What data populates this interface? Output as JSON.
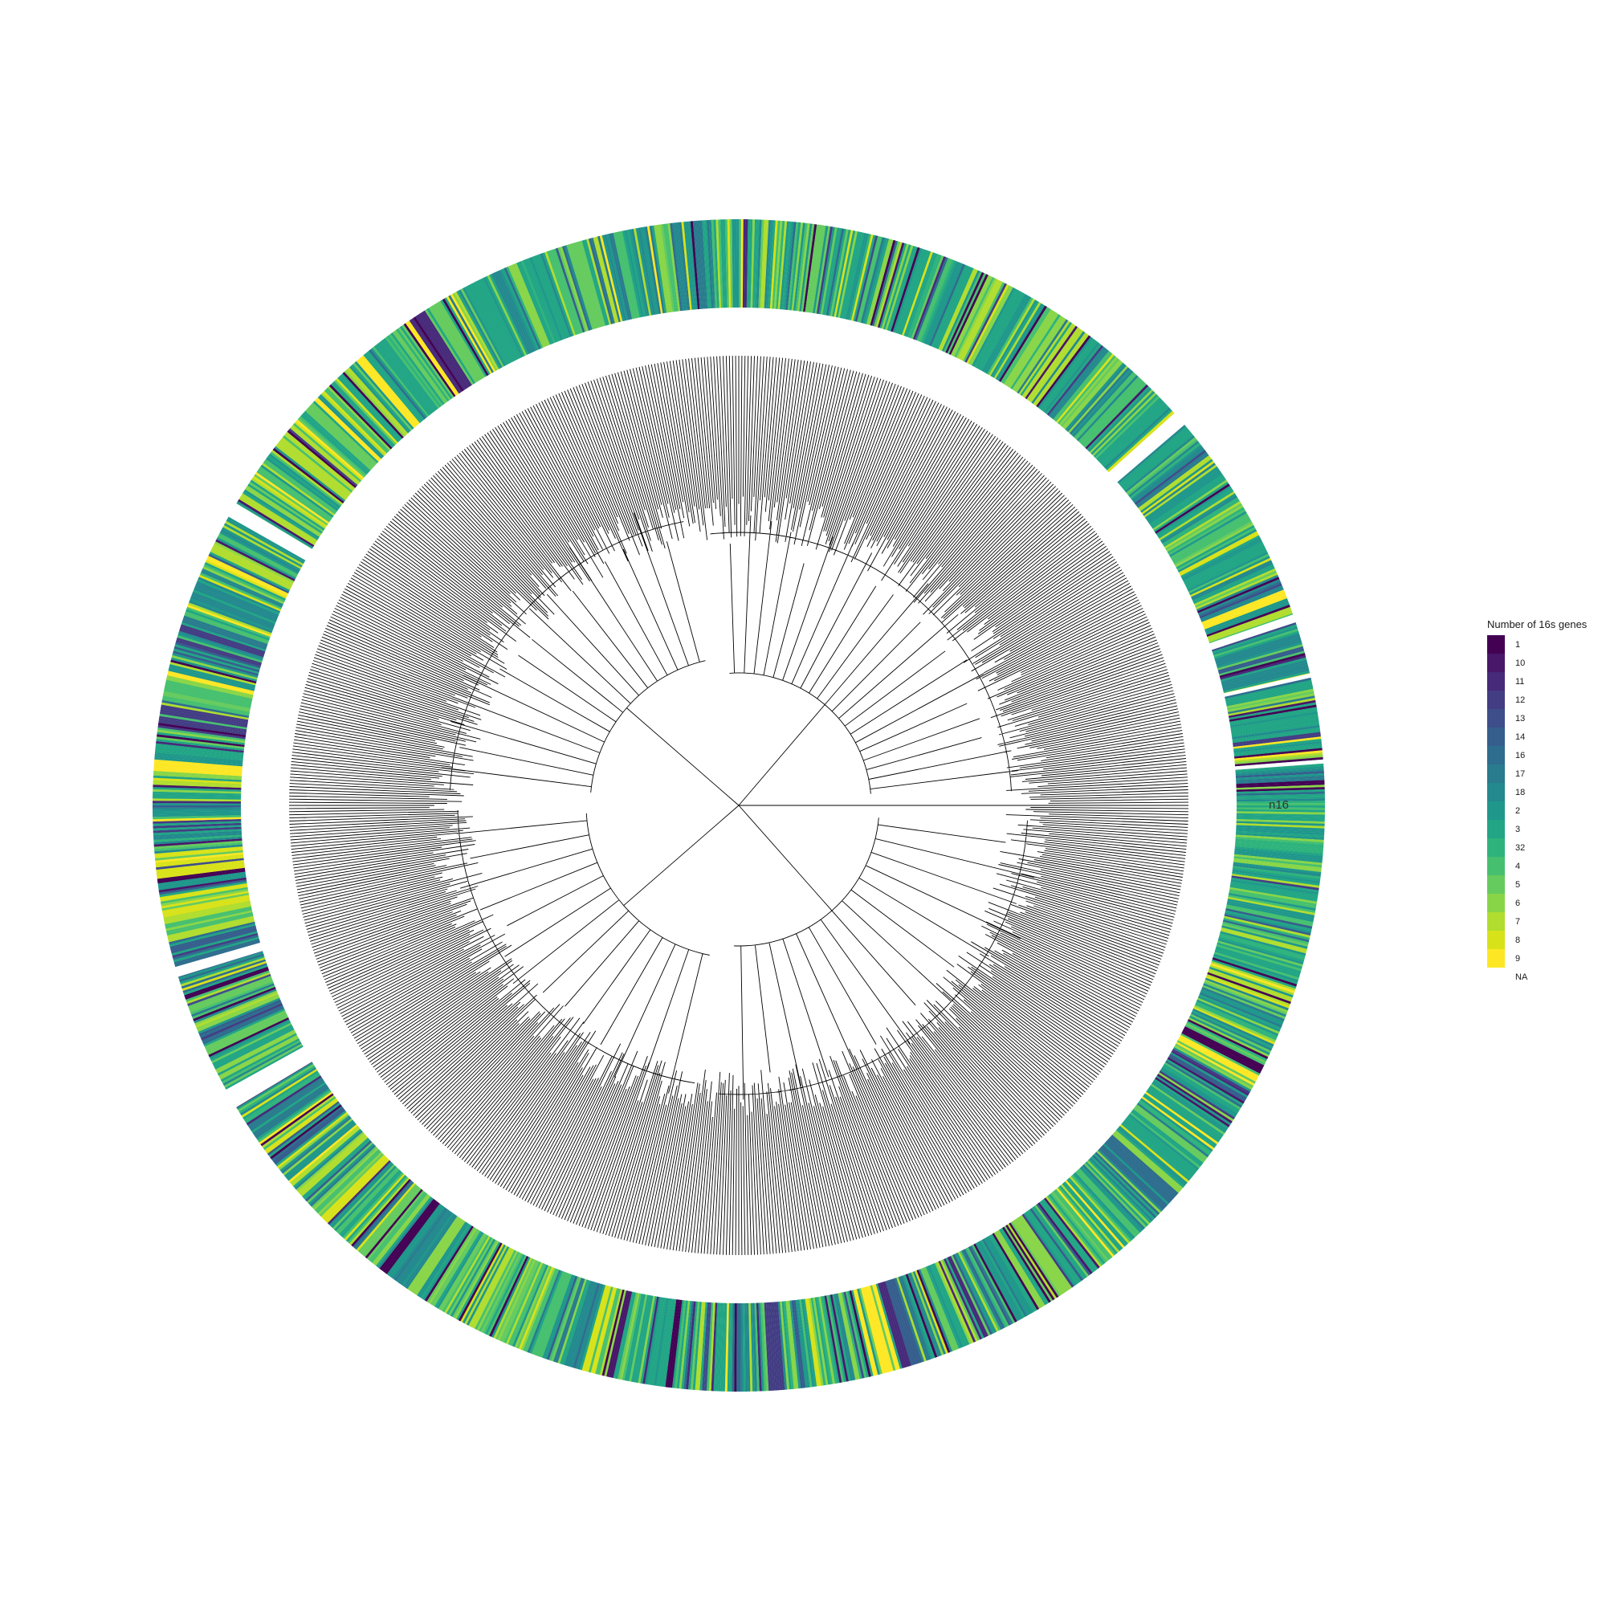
{
  "figure": {
    "type": "circular phylogenetic tree with heatmap ring",
    "tree_line_color": "#000000",
    "ring_label": "n16"
  },
  "legend": {
    "title": "Number of 16s genes",
    "items": [
      {
        "label": "1",
        "color": "#440154"
      },
      {
        "label": "10",
        "color": "#481769"
      },
      {
        "label": "11",
        "color": "#472A7A"
      },
      {
        "label": "12",
        "color": "#433D84"
      },
      {
        "label": "13",
        "color": "#3D4E8A"
      },
      {
        "label": "14",
        "color": "#355E8D"
      },
      {
        "label": "16",
        "color": "#2E6D8E"
      },
      {
        "label": "17",
        "color": "#297B8E"
      },
      {
        "label": "18",
        "color": "#23898E"
      },
      {
        "label": "2",
        "color": "#1F978B"
      },
      {
        "label": "3",
        "color": "#21A585"
      },
      {
        "label": "32",
        "color": "#2EB37C"
      },
      {
        "label": "4",
        "color": "#46C06F"
      },
      {
        "label": "5",
        "color": "#65CB5E"
      },
      {
        "label": "6",
        "color": "#89D548"
      },
      {
        "label": "7",
        "color": "#B0DD2F"
      },
      {
        "label": "8",
        "color": "#D8E219"
      },
      {
        "label": "9",
        "color": "#FDE725"
      },
      {
        "label": "NA",
        "color": "#FFFFFF"
      }
    ]
  }
}
